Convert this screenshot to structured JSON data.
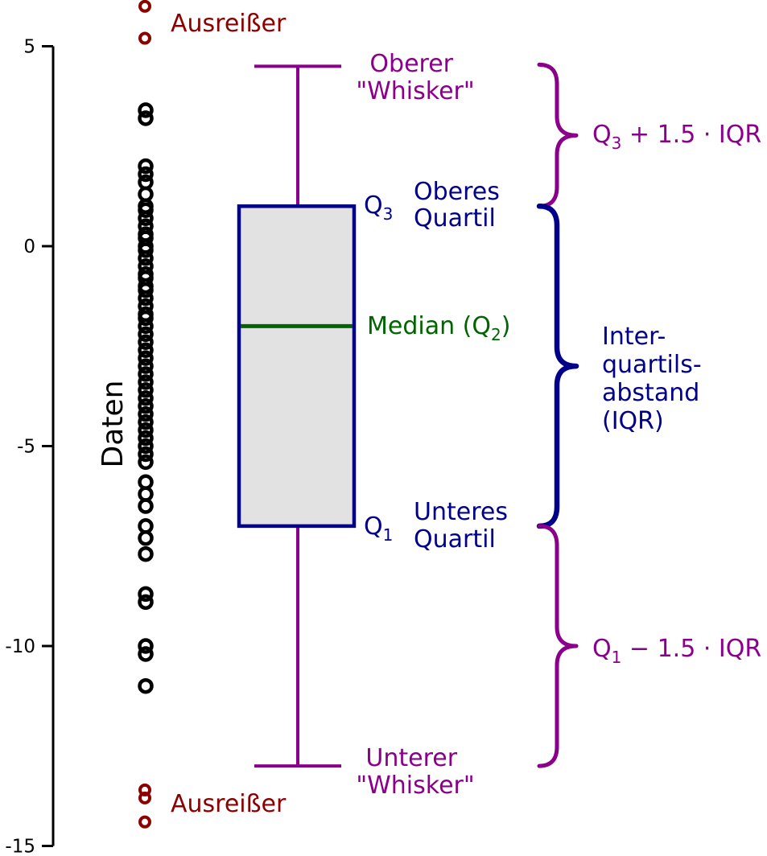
{
  "colors": {
    "axis": "#000000",
    "points": "#000000",
    "outliers": "#8b0000",
    "whisker": "#8b008b",
    "box": "#00008b",
    "box_fill": "#e2e2e2",
    "median": "#006400"
  },
  "chart_data": {
    "type": "boxplot",
    "ylabel": "Daten",
    "ylim": [
      -15,
      6
    ],
    "yticks": [
      {
        "value": 5,
        "label": "5"
      },
      {
        "value": 0,
        "label": "0"
      },
      {
        "value": -5,
        "label": "-5"
      },
      {
        "value": -10,
        "label": "-10"
      },
      {
        "value": -15,
        "label": "-15"
      }
    ],
    "stats": {
      "q3": 1,
      "median": -2,
      "q1": -7,
      "upper_whisker": 4.5,
      "lower_whisker": -13
    },
    "points": [
      3.4,
      3.2,
      2.0,
      1.8,
      1.6,
      1.3,
      1.0,
      0.9,
      0.7,
      0.5,
      0.3,
      0.2,
      0.0,
      -0.1,
      -0.3,
      -0.5,
      -0.7,
      -0.8,
      -1.0,
      -1.1,
      -1.3,
      -1.5,
      -1.7,
      -1.8,
      -2.0,
      -2.2,
      -2.4,
      -2.6,
      -2.8,
      -3.0,
      -3.2,
      -3.4,
      -3.6,
      -3.8,
      -4.0,
      -4.2,
      -4.4,
      -4.6,
      -4.8,
      -5.0,
      -5.2,
      -5.4,
      -5.9,
      -6.2,
      -6.5,
      -7.0,
      -7.3,
      -7.7,
      -8.7,
      -8.9,
      -10.0,
      -10.2,
      -11.0
    ],
    "outliers": [
      6.0,
      5.2,
      -13.6,
      -13.8,
      -14.4
    ],
    "annotations": {
      "outlier_top": "Ausreißer",
      "outlier_bottom": "Ausreißer",
      "upper_whisker": [
        "Oberer",
        "\"Whisker\""
      ],
      "lower_whisker": [
        "Unterer",
        "\"Whisker\""
      ],
      "q3_symbol": "Q",
      "q3_sub": "3",
      "q3_label": [
        "Oberes",
        "Quartil"
      ],
      "q1_symbol": "Q",
      "q1_sub": "1",
      "q1_label": [
        "Unteres",
        "Quartil"
      ],
      "median_label": "Median (Q",
      "median_sub": "2",
      "median_close": ")",
      "iqr_label": [
        "Inter-",
        "quartils-",
        "abstand",
        "(IQR)"
      ],
      "upper_formula_q": "Q",
      "upper_formula_sub": "3",
      "upper_formula_rest": " + 1.5 · IQR",
      "lower_formula_q": "Q",
      "lower_formula_sub": "1",
      "lower_formula_rest": " − 1.5 · IQR"
    }
  }
}
